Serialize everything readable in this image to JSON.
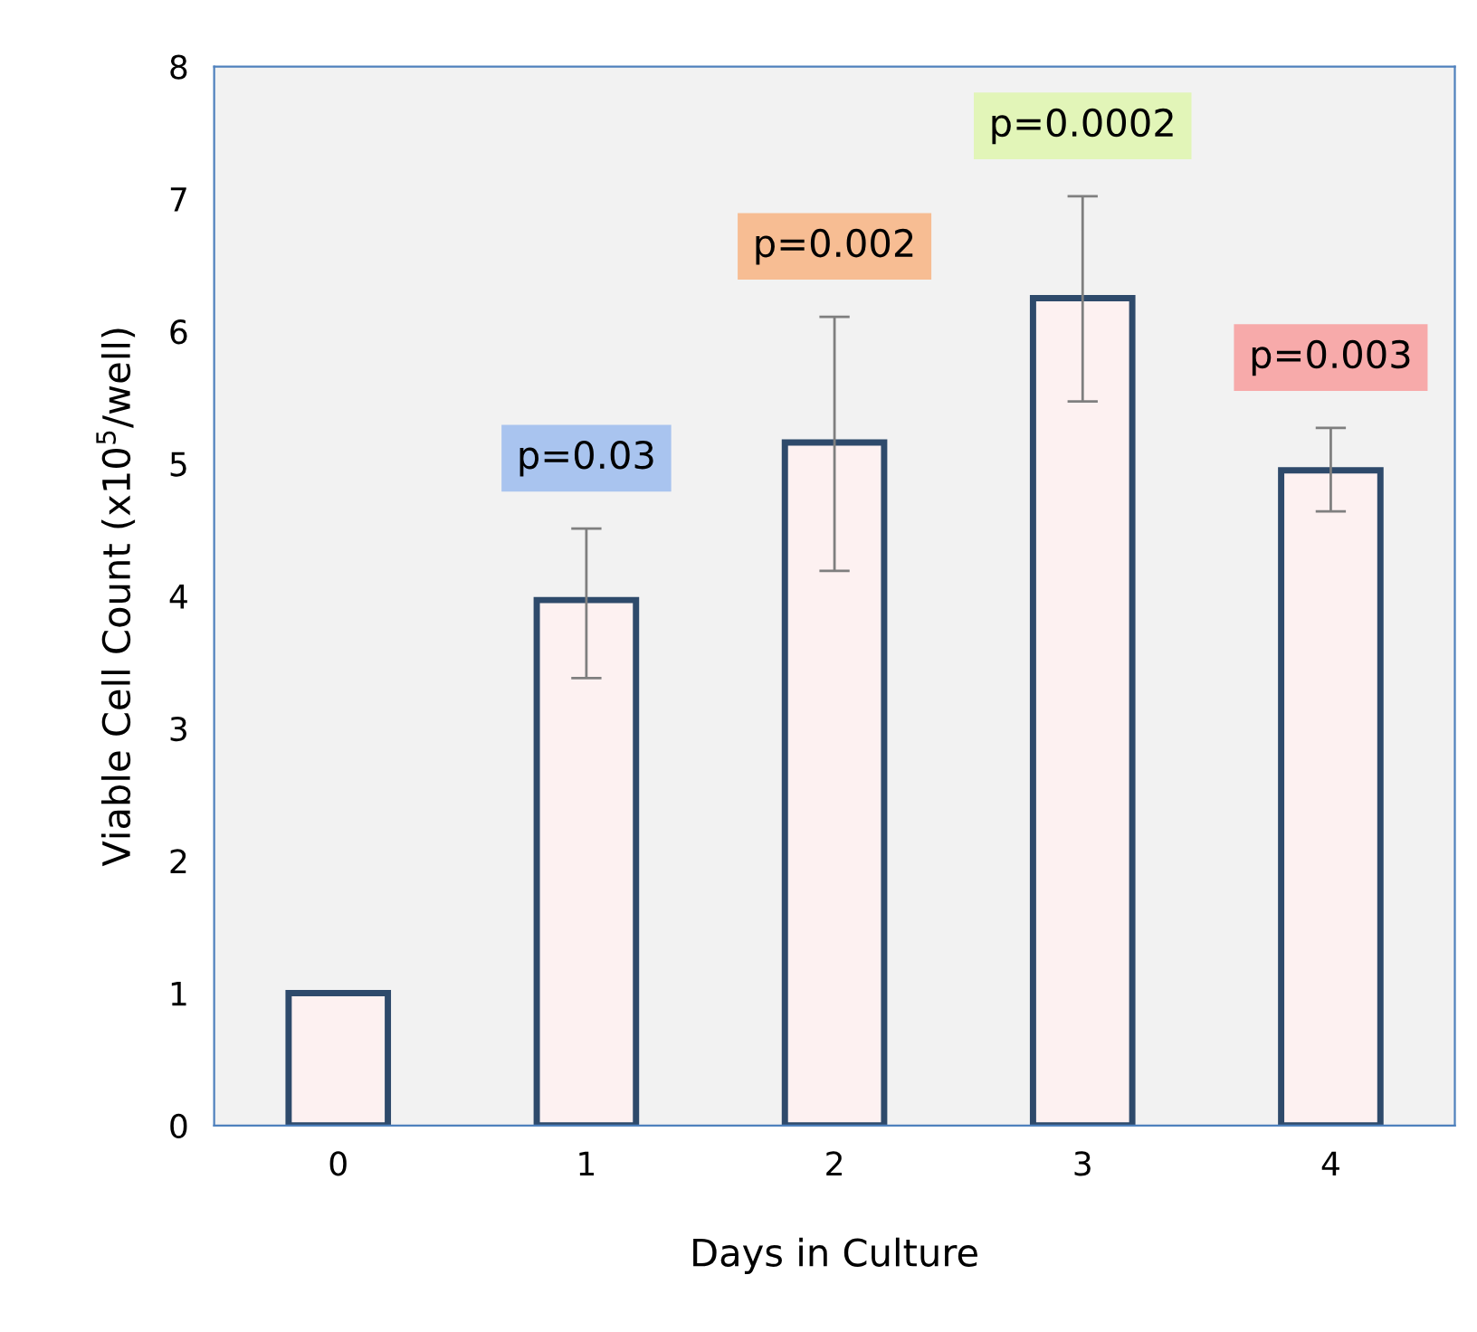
{
  "chart_data": {
    "type": "bar",
    "xlabel": "Days in Culture",
    "ylabel": "Viable Cell Count (x10$^{5}$/well)",
    "categories": [
      "0",
      "1",
      "2",
      "3",
      "4"
    ],
    "values": [
      1.0,
      3.97,
      5.16,
      6.25,
      4.95
    ],
    "errors": [
      null,
      [
        3.38,
        4.51
      ],
      [
        4.19,
        6.11
      ],
      [
        5.47,
        7.02
      ],
      [
        4.64,
        5.27
      ]
    ],
    "color": "#fdf1f1",
    "ylim": [
      0,
      8
    ],
    "yticks": [
      0,
      1,
      2,
      3,
      4,
      5,
      6,
      7,
      8
    ],
    "annotations": [
      {
        "text": "p=0.03",
        "x": "1",
        "y": 4.51
      },
      {
        "text": "p=0.002",
        "x": "2",
        "y": 6.11
      },
      {
        "text": "p=0.0002",
        "x": "3",
        "y": 7.02
      },
      {
        "text": "p=0.003",
        "x": "4",
        "y": 5.27
      }
    ]
  }
}
